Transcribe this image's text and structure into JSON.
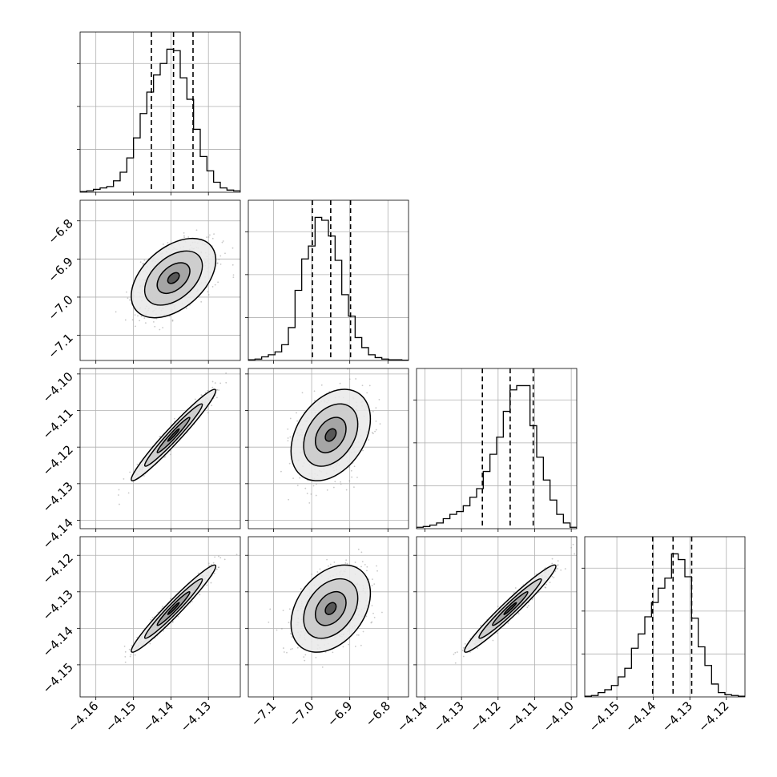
{
  "chart_data": {
    "type": "corner",
    "grid": true,
    "params": [
      {
        "ticks": [
          "−4.16",
          "−4.15",
          "−4.14",
          "−4.13"
        ],
        "tick_values": [
          -4.16,
          -4.15,
          -4.14,
          -4.13
        ],
        "range": [
          -4.1642,
          -4.1215
        ],
        "mean": -4.1393,
        "sd": 0.00512,
        "quantiles": [
          -4.1452,
          -4.1393,
          -4.1341
        ],
        "hist": [
          0.5,
          1,
          2,
          3,
          4,
          8,
          14,
          24,
          38,
          55,
          70,
          82,
          90,
          100,
          99,
          80,
          65,
          44,
          25,
          15,
          7,
          3,
          1.5,
          1
        ]
      },
      {
        "ticks": [
          "−7.1",
          "−7.0",
          "−6.9",
          "−6.8"
        ],
        "tick_values": [
          -7.1,
          -7.0,
          -6.9,
          -6.8
        ],
        "range": [
          -7.166,
          -6.746
        ],
        "mean": -6.95,
        "sd": 0.0473,
        "quantiles": [
          -6.998,
          -6.95,
          -6.898
        ],
        "hist": [
          0.5,
          1,
          2.5,
          4,
          6,
          11,
          23,
          49,
          71,
          80,
          100,
          98,
          87,
          70,
          46,
          31,
          16,
          9,
          4,
          2,
          1,
          0.5,
          0.5,
          0.2
        ]
      },
      {
        "ticks": [
          "−4.14",
          "−4.13",
          "−4.12",
          "−4.11",
          "−4.10"
        ],
        "tick_values": [
          -4.14,
          -4.13,
          -4.12,
          -4.11,
          -4.1
        ],
        "range": [
          -4.1423,
          -4.0985
        ],
        "mean": -4.1167,
        "sd": 0.00568,
        "quantiles": [
          -4.1243,
          -4.1167,
          -4.1104
        ],
        "hist": [
          1,
          1.5,
          2.5,
          4,
          7,
          10,
          12,
          16,
          22,
          28,
          40,
          52,
          64,
          82,
          97,
          100,
          100,
          72,
          50,
          34,
          20,
          10,
          4,
          1
        ]
      },
      {
        "ticks": [
          "−4.15",
          "−4.14",
          "−4.13",
          "−4.12"
        ],
        "tick_values": [
          -4.15,
          -4.14,
          -4.13,
          -4.12
        ],
        "range": [
          -4.1588,
          -4.1149
        ],
        "mean": -4.1346,
        "sd": 0.00543,
        "quantiles": [
          -4.1402,
          -4.1346,
          -4.1295
        ],
        "hist": [
          0.5,
          1,
          3,
          5,
          8,
          14,
          20,
          34,
          44,
          56,
          66,
          76,
          83,
          100,
          96,
          84,
          55,
          35,
          22,
          9,
          3,
          1.5,
          1,
          0.5
        ]
      }
    ],
    "correlations": [
      [
        1,
        0.45,
        0.97,
        0.97
      ],
      [
        0.45,
        1,
        0.35,
        0.35
      ],
      [
        0.97,
        0.35,
        1,
        0.97
      ],
      [
        0.97,
        0.35,
        0.97,
        1
      ]
    ],
    "hist_ylim": [
      0,
      1.12
    ],
    "hist_yticks": [
      0.3,
      0.6,
      0.9
    ],
    "colors": {
      "axis": "#000000",
      "grid": "#b0b0b0",
      "points": "#9a9a9a",
      "contour": "#000000"
    },
    "scatter_points_per_panel": 650,
    "contour_levels": [
      2.2,
      1.5,
      0.85,
      0.3
    ]
  }
}
